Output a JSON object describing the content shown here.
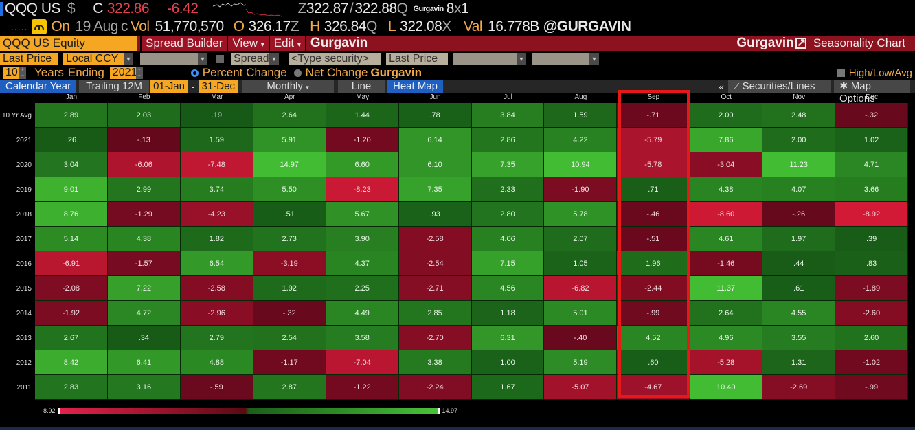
{
  "ticker": {
    "symbol": "QQQ US",
    "currency": "$",
    "close_label": "C",
    "close": "322.86",
    "change": "-6.42",
    "bid_ask_prefix": "Z",
    "bid": "322.87",
    "ask": "322.88",
    "ask_suffix": "Q",
    "watermark_small": "Gurgavin",
    "size": "8",
    "size_x": "x",
    "size_2": "1",
    "on_label": "On",
    "date": "19 Aug",
    "date_suffix": "c",
    "vol_label": "Vol",
    "volume": "51,770,570",
    "open_label": "O",
    "open": "326.17",
    "open_suffix": "Z",
    "high_label": "H",
    "high": "326.84",
    "high_suffix": "Q",
    "low_label": "L",
    "low": "322.08",
    "low_suffix": "X",
    "val_label": "Val",
    "value": "16.778B",
    "handle": "@GURGAVIN"
  },
  "toolbar": {
    "security": "QQQ US Equity",
    "spread_builder": "Spread Builder",
    "view": "View",
    "edit": "Edit",
    "watermark": "Gurgavin",
    "watermark_right": "Gurgavin",
    "title": "Seasonality Chart"
  },
  "row2": {
    "price_field": "Last Price",
    "currency": "Local CCY",
    "spread": "Spread",
    "type_security_placeholder": "<Type security>",
    "price_field_2": "Last Price"
  },
  "row3": {
    "years": "10",
    "years_label": "Years",
    "ending_label": "Ending",
    "ending_year": "2021",
    "percent_change": "Percent Change",
    "net_change": "Net Change",
    "watermark": "Gurgavin",
    "high_low_avg": "High/Low/Avg"
  },
  "row4": {
    "calendar_year": "Calendar Year",
    "trailing_12m": "Trailing 12M",
    "start_date": "01-Jan",
    "dash": "-",
    "end_date": "31-Dec",
    "frequency": "Monthly",
    "line": "Line",
    "heat_map": "Heat Map",
    "collapse": "«",
    "securities_lines": "Securities/Lines",
    "map_options": "Map Options"
  },
  "chart_data": {
    "type": "heatmap",
    "title": "Seasonality Chart - QQQ US Equity (Percent Change, Monthly)",
    "categories": [
      "Jan",
      "Feb",
      "Mar",
      "Apr",
      "May",
      "Jun",
      "Jul",
      "Aug",
      "Sep",
      "Oct",
      "Nov",
      "Dec"
    ],
    "rows": [
      "10 Yr Avg",
      "2021",
      "2020",
      "2019",
      "2018",
      "2017",
      "2016",
      "2015",
      "2014",
      "2013",
      "2012",
      "2011"
    ],
    "values": [
      [
        "2.89",
        "2.03",
        ".19",
        "2.64",
        "1.44",
        ".78",
        "3.84",
        "1.59",
        "-.71",
        "2.00",
        "2.48",
        "-.32"
      ],
      [
        ".26",
        "-.13",
        "1.59",
        "5.91",
        "-1.20",
        "6.14",
        "2.86",
        "4.22",
        "-5.79",
        "7.86",
        "2.00",
        "1.02"
      ],
      [
        "3.04",
        "-6.06",
        "-7.48",
        "14.97",
        "6.60",
        "6.10",
        "7.35",
        "10.94",
        "-5.78",
        "-3.04",
        "11.23",
        "4.71"
      ],
      [
        "9.01",
        "2.99",
        "3.74",
        "5.50",
        "-8.23",
        "7.35",
        "2.33",
        "-1.90",
        ".71",
        "4.38",
        "4.07",
        "3.66"
      ],
      [
        "8.76",
        "-1.29",
        "-4.23",
        ".51",
        "5.67",
        ".93",
        "2.80",
        "5.78",
        "-.46",
        "-8.60",
        "-.26",
        "-8.92"
      ],
      [
        "5.14",
        "4.38",
        "1.82",
        "2.73",
        "3.90",
        "-2.58",
        "4.06",
        "2.07",
        "-.51",
        "4.61",
        "1.97",
        ".39"
      ],
      [
        "-6.91",
        "-1.57",
        "6.54",
        "-3.19",
        "4.37",
        "-2.54",
        "7.15",
        "1.05",
        "1.96",
        "-1.46",
        ".44",
        ".83"
      ],
      [
        "-2.08",
        "7.22",
        "-2.58",
        "1.92",
        "2.25",
        "-2.71",
        "4.56",
        "-6.82",
        "-2.44",
        "11.37",
        ".61",
        "-1.89"
      ],
      [
        "-1.92",
        "4.72",
        "-2.96",
        "-.32",
        "4.49",
        "2.85",
        "1.18",
        "5.01",
        "-.99",
        "2.64",
        "4.55",
        "-2.60"
      ],
      [
        "2.67",
        ".34",
        "2.79",
        "2.54",
        "3.58",
        "-2.70",
        "6.31",
        "-.40",
        "4.52",
        "4.96",
        "3.55",
        "2.60"
      ],
      [
        "8.42",
        "6.41",
        "4.88",
        "-1.17",
        "-7.04",
        "3.38",
        "1.00",
        "5.19",
        ".60",
        "-5.28",
        "1.31",
        "-1.02"
      ],
      [
        "2.83",
        "3.16",
        "-.59",
        "2.87",
        "-1.22",
        "-2.24",
        "1.67",
        "-5.07",
        "-4.67",
        "10.40",
        "-2.69",
        "-.99"
      ]
    ],
    "highlighted_column": "Sep",
    "scale_min": "-8.92",
    "scale_max": "14.97",
    "colors": {
      "negative_strong": "#c01a38",
      "negative_weak": "#6a0a1c",
      "positive_weak": "#1c5a1a",
      "positive_strong": "#45bb35",
      "highlight_border": "#e81818"
    }
  }
}
